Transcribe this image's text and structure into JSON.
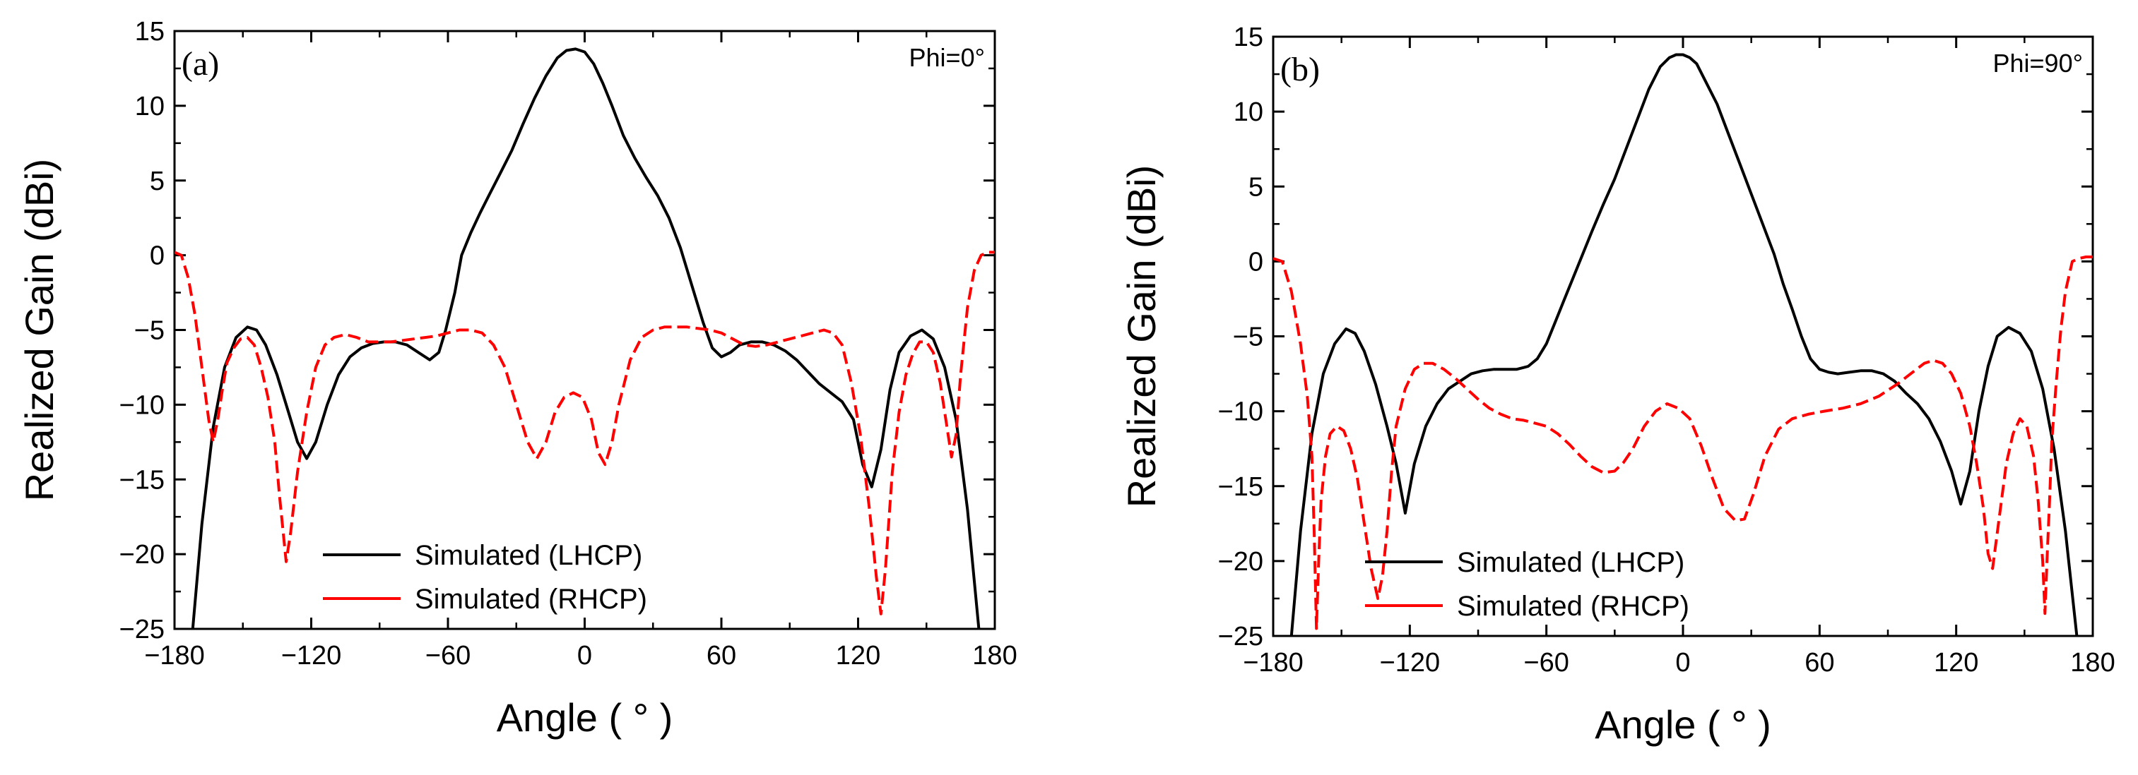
{
  "chart_data": [
    {
      "type": "line",
      "panel_label": "(a)",
      "annotation": "Phi=0°",
      "xlabel": "Angle ( ° )",
      "ylabel": "Realized Gain (dBi)",
      "xlim": [
        -180,
        180
      ],
      "ylim": [
        -25,
        15
      ],
      "xticks": [
        -180,
        -120,
        -60,
        0,
        60,
        120,
        180
      ],
      "yticks": [
        -25,
        -20,
        -15,
        -10,
        -5,
        0,
        5,
        10,
        15
      ],
      "legend_position": "lower-center",
      "series": [
        {
          "name": "Simulated (LHCP)",
          "color": "#000000",
          "style": "solid",
          "x": [
            -172,
            -168,
            -163,
            -158,
            -153,
            -148,
            -144,
            -140,
            -135,
            -130,
            -126,
            -122,
            -118,
            -113,
            -108,
            -103,
            -98,
            -93,
            -88,
            -83,
            -78,
            -73,
            -68,
            -64,
            -61,
            -57,
            -54,
            -50,
            -46,
            -42,
            -37,
            -32,
            -27,
            -22,
            -17,
            -12,
            -8,
            -4,
            0,
            4,
            8,
            12,
            17,
            22,
            27,
            32,
            37,
            42,
            47,
            52,
            56,
            60,
            64,
            68,
            73,
            78,
            83,
            88,
            93,
            98,
            103,
            108,
            113,
            118,
            122,
            126,
            130,
            134,
            138,
            143,
            148,
            153,
            158,
            163,
            168,
            173
          ],
          "y": [
            -25,
            -18,
            -11.5,
            -7.5,
            -5.5,
            -4.8,
            -5,
            -6,
            -8,
            -10.5,
            -12.5,
            -13.6,
            -12.5,
            -10,
            -8,
            -6.8,
            -6.2,
            -5.9,
            -5.8,
            -5.8,
            -6,
            -6.5,
            -7,
            -6.5,
            -5,
            -2.5,
            0,
            1.5,
            2.8,
            4,
            5.5,
            7,
            8.8,
            10.5,
            12,
            13.2,
            13.7,
            13.8,
            13.6,
            12.8,
            11.5,
            10,
            8,
            6.5,
            5.2,
            4,
            2.5,
            0.5,
            -2,
            -4.5,
            -6.2,
            -6.8,
            -6.5,
            -6,
            -5.8,
            -5.8,
            -6,
            -6.4,
            -7,
            -7.8,
            -8.6,
            -9.2,
            -9.8,
            -11,
            -14,
            -15.5,
            -13,
            -9,
            -6.5,
            -5.4,
            -5,
            -5.6,
            -7.5,
            -11,
            -17,
            -25
          ]
        },
        {
          "name": "Simulated (RHCP)",
          "color": "#ff0000",
          "style": "dashed",
          "x": [
            -180,
            -177,
            -174,
            -171,
            -168,
            -165,
            -163,
            -161,
            -159,
            -157,
            -154,
            -151,
            -148,
            -145,
            -142,
            -139,
            -136,
            -134,
            -132,
            -131,
            -129,
            -126,
            -122,
            -118,
            -114,
            -110,
            -105,
            -100,
            -95,
            -90,
            -85,
            -80,
            -75,
            -70,
            -65,
            -60,
            -55,
            -50,
            -45,
            -40,
            -35,
            -30,
            -25,
            -21,
            -17,
            -13,
            -9,
            -5,
            -1,
            3,
            6,
            9,
            12,
            15,
            20,
            25,
            30,
            35,
            40,
            45,
            50,
            55,
            60,
            65,
            70,
            75,
            80,
            85,
            90,
            95,
            100,
            105,
            109,
            113,
            117,
            121,
            125,
            128,
            130,
            132,
            135,
            138,
            141,
            144,
            147,
            150,
            153,
            156,
            159,
            161,
            163,
            165,
            168,
            171,
            174,
            177,
            180
          ],
          "y": [
            0.2,
            0,
            -1.5,
            -4,
            -7.5,
            -11,
            -12.5,
            -11,
            -9,
            -7.2,
            -6.2,
            -5.6,
            -5.5,
            -6,
            -7.5,
            -9.5,
            -12.5,
            -16,
            -19,
            -20.5,
            -18.5,
            -14.5,
            -10.5,
            -7.5,
            -6,
            -5.5,
            -5.3,
            -5.5,
            -5.8,
            -5.8,
            -5.8,
            -5.7,
            -5.6,
            -5.5,
            -5.4,
            -5.2,
            -5.0,
            -5.0,
            -5.2,
            -6.0,
            -7.5,
            -10,
            -12.5,
            -13.6,
            -12.5,
            -10.5,
            -9.5,
            -9.2,
            -9.5,
            -11,
            -13.2,
            -14,
            -12.5,
            -10,
            -7,
            -5.5,
            -5,
            -4.8,
            -4.8,
            -4.8,
            -4.9,
            -5.0,
            -5.2,
            -5.6,
            -6.0,
            -6.1,
            -6.0,
            -5.8,
            -5.6,
            -5.4,
            -5.2,
            -5.0,
            -5.2,
            -6.0,
            -8.5,
            -12,
            -17,
            -21.5,
            -24,
            -21,
            -14.5,
            -10.5,
            -8,
            -6.6,
            -5.8,
            -5.8,
            -6.5,
            -8.5,
            -11.5,
            -13.5,
            -12,
            -8,
            -3.5,
            -1,
            0,
            0.2,
            0.2
          ]
        }
      ]
    },
    {
      "type": "line",
      "panel_label": "(b)",
      "annotation": "Phi=90°",
      "xlabel": "Angle ( ° )",
      "ylabel": "Realized Gain (dBi)",
      "xlim": [
        -180,
        180
      ],
      "ylim": [
        -25,
        15
      ],
      "xticks": [
        -180,
        -120,
        -60,
        0,
        60,
        120,
        180
      ],
      "yticks": [
        -25,
        -20,
        -15,
        -10,
        -5,
        0,
        5,
        10,
        15
      ],
      "legend_position": "lower-center",
      "series": [
        {
          "name": "Simulated (LHCP)",
          "color": "#000000",
          "style": "solid",
          "x": [
            -172,
            -168,
            -163,
            -158,
            -153,
            -148,
            -144,
            -140,
            -135,
            -130,
            -126,
            -122,
            -118,
            -113,
            -108,
            -103,
            -98,
            -93,
            -88,
            -83,
            -78,
            -73,
            -68,
            -64,
            -60,
            -56,
            -52,
            -48,
            -44,
            -40,
            -35,
            -30,
            -25,
            -20,
            -15,
            -10,
            -6,
            -3,
            0,
            3,
            6,
            10,
            15,
            20,
            25,
            30,
            35,
            40,
            44,
            48,
            52,
            56,
            60,
            64,
            68,
            73,
            78,
            83,
            88,
            93,
            98,
            103,
            108,
            113,
            118,
            122,
            126,
            130,
            134,
            138,
            143,
            148,
            153,
            158,
            163,
            168,
            173
          ],
          "y": [
            -25,
            -18,
            -11.5,
            -7.5,
            -5.5,
            -4.5,
            -4.8,
            -6,
            -8.2,
            -11,
            -13.5,
            -16.8,
            -13.5,
            -11,
            -9.5,
            -8.5,
            -8,
            -7.5,
            -7.3,
            -7.2,
            -7.2,
            -7.2,
            -7.0,
            -6.5,
            -5.5,
            -4,
            -2.5,
            -1,
            0.5,
            2,
            3.8,
            5.5,
            7.5,
            9.5,
            11.5,
            13,
            13.6,
            13.8,
            13.8,
            13.6,
            13.2,
            12,
            10.5,
            8.5,
            6.5,
            4.5,
            2.5,
            0.5,
            -1.5,
            -3.2,
            -5,
            -6.5,
            -7.2,
            -7.4,
            -7.5,
            -7.4,
            -7.3,
            -7.3,
            -7.5,
            -8,
            -8.8,
            -9.5,
            -10.5,
            -12,
            -14,
            -16.2,
            -14,
            -10,
            -7,
            -5,
            -4.4,
            -4.8,
            -6,
            -8.5,
            -12.5,
            -18,
            -25
          ]
        },
        {
          "name": "Simulated (RHCP)",
          "color": "#ff0000",
          "style": "dashed",
          "x": [
            -180,
            -176,
            -172,
            -168,
            -165,
            -163,
            -162,
            -161,
            -160,
            -159,
            -157,
            -155,
            -152,
            -149,
            -146,
            -143,
            -140,
            -137,
            -134,
            -132,
            -130,
            -128,
            -126,
            -122,
            -118,
            -114,
            -110,
            -105,
            -100,
            -95,
            -90,
            -85,
            -80,
            -75,
            -70,
            -65,
            -60,
            -55,
            -50,
            -45,
            -40,
            -35,
            -30,
            -26,
            -22,
            -17,
            -12,
            -7,
            -2,
            3,
            8,
            13,
            18,
            23,
            27,
            31,
            36,
            42,
            48,
            55,
            62,
            70,
            78,
            86,
            94,
            100,
            106,
            110,
            114,
            118,
            122,
            126,
            129,
            132,
            134,
            136,
            139,
            142,
            145,
            148,
            151,
            154,
            156,
            158,
            159,
            160,
            161,
            162,
            164,
            166,
            168,
            171,
            174,
            177,
            180
          ],
          "y": [
            0.2,
            0,
            -2,
            -5.5,
            -9,
            -13,
            -18,
            -24.5,
            -20,
            -16,
            -13,
            -11.5,
            -11,
            -11.3,
            -12.5,
            -14.5,
            -17.5,
            -20.5,
            -22.5,
            -21,
            -18,
            -14,
            -11,
            -8.5,
            -7.2,
            -6.8,
            -6.8,
            -7.2,
            -7.8,
            -8.5,
            -9.2,
            -9.8,
            -10.2,
            -10.5,
            -10.6,
            -10.8,
            -11,
            -11.5,
            -12.2,
            -13,
            -13.7,
            -14.1,
            -14,
            -13.4,
            -12.5,
            -11,
            -10,
            -9.5,
            -9.8,
            -10.5,
            -12.3,
            -14.5,
            -16.5,
            -17.3,
            -17.2,
            -15.5,
            -13,
            -11.2,
            -10.5,
            -10.2,
            -10,
            -9.8,
            -9.5,
            -9,
            -8.2,
            -7.5,
            -6.8,
            -6.6,
            -6.8,
            -7.5,
            -8.8,
            -11,
            -13.5,
            -16.5,
            -19.5,
            -20.5,
            -17,
            -13.5,
            -11.5,
            -10.5,
            -11,
            -13,
            -16,
            -20,
            -23.5,
            -19.5,
            -16,
            -12,
            -8,
            -4.5,
            -2,
            0,
            0.2,
            0.3,
            0.3
          ]
        }
      ]
    }
  ]
}
